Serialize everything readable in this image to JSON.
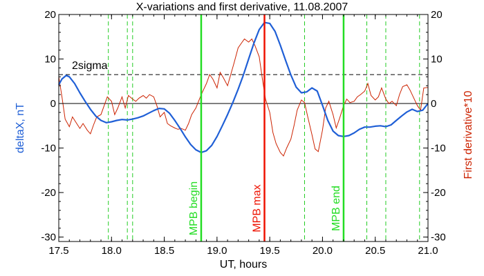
{
  "chart_data": {
    "type": "line",
    "title": "X-variations and first derivative, 11.08.2007",
    "xlabel": "UT, hours",
    "ylabel_left": "deltaX, nT",
    "ylabel_right": "First derivative*10",
    "xlim": [
      17.5,
      21.0
    ],
    "ylim_left": [
      -31,
      20
    ],
    "ylim_right": [
      -31,
      20
    ],
    "x_ticks": [
      17.5,
      18.0,
      18.5,
      19.0,
      19.5,
      20.0,
      20.5,
      21.0
    ],
    "x_tick_labels": [
      "17.5",
      "18.0",
      "18.5",
      "19.0",
      "19.5",
      "20.0",
      "20.5",
      "21.0"
    ],
    "y_ticks": [
      20,
      10,
      0,
      -10,
      -20,
      -30
    ],
    "y_tick_labels": [
      "20",
      "10",
      "0",
      "-10",
      "-20",
      "-30"
    ],
    "colors": {
      "deltaX": "#1f5fd6",
      "derivative": "#cc2200",
      "mpb_line": "#22dd22",
      "max_line": "#ee1100",
      "dashed_green": "#22cc22",
      "sigma": "#000000",
      "left_label": "#1f5fd6",
      "right_label": "#cc2200"
    },
    "sigma": {
      "label": "2sigma",
      "value": 6.5
    },
    "zero_line": 0,
    "vertical_markers": [
      {
        "x": 18.85,
        "label": "MPB begin",
        "kind": "mpb"
      },
      {
        "x": 19.45,
        "label": "MPB max",
        "kind": "max"
      },
      {
        "x": 20.2,
        "label": "MPB end",
        "kind": "mpb"
      }
    ],
    "dashed_markers": [
      17.97,
      18.15,
      18.2,
      19.83,
      20.42,
      20.6,
      20.92
    ],
    "series": [
      {
        "name": "deltaX",
        "axis": "left",
        "x": [
          17.5,
          17.53,
          17.57,
          17.6,
          17.65,
          17.7,
          17.75,
          17.8,
          17.85,
          17.9,
          17.95,
          18.0,
          18.05,
          18.1,
          18.15,
          18.2,
          18.25,
          18.3,
          18.35,
          18.4,
          18.45,
          18.5,
          18.55,
          18.6,
          18.65,
          18.7,
          18.75,
          18.8,
          18.85,
          18.9,
          18.95,
          19.0,
          19.05,
          19.1,
          19.15,
          19.2,
          19.25,
          19.3,
          19.35,
          19.4,
          19.45,
          19.5,
          19.55,
          19.6,
          19.65,
          19.7,
          19.75,
          19.8,
          19.85,
          19.9,
          19.95,
          20.0,
          20.05,
          20.1,
          20.15,
          20.2,
          20.25,
          20.3,
          20.35,
          20.4,
          20.45,
          20.5,
          20.55,
          20.6,
          20.65,
          20.7,
          20.75,
          20.8,
          20.85,
          20.9,
          20.95,
          21.0
        ],
        "y": [
          4.2,
          5.5,
          6.3,
          6.0,
          4.5,
          2.4,
          0.5,
          -1.3,
          -2.8,
          -3.8,
          -4.3,
          -4.1,
          -3.8,
          -3.6,
          -3.7,
          -3.5,
          -3.2,
          -2.8,
          -2.2,
          -1.6,
          -1.1,
          -1.2,
          -2.2,
          -3.8,
          -5.6,
          -7.5,
          -9.2,
          -10.4,
          -11.0,
          -10.6,
          -9.4,
          -7.4,
          -5.0,
          -2.5,
          0.2,
          3.2,
          6.4,
          10.0,
          13.6,
          16.6,
          18.2,
          18.0,
          16.2,
          13.1,
          9.7,
          6.4,
          3.7,
          2.4,
          2.6,
          3.5,
          2.8,
          -0.4,
          -3.8,
          -6.2,
          -7.2,
          -7.4,
          -7.2,
          -6.6,
          -5.8,
          -5.3,
          -5.3,
          -5.1,
          -5.0,
          -5.2,
          -4.8,
          -3.8,
          -2.8,
          -1.9,
          -1.3,
          -1.8,
          -1.5,
          0.0
        ]
      },
      {
        "name": "derivative",
        "axis": "right",
        "x": [
          17.5,
          17.53,
          17.56,
          17.6,
          17.63,
          17.67,
          17.7,
          17.73,
          17.77,
          17.8,
          17.83,
          17.86,
          17.9,
          17.93,
          17.96,
          18.0,
          18.03,
          18.06,
          18.1,
          18.13,
          18.16,
          18.2,
          18.23,
          18.26,
          18.3,
          18.33,
          18.36,
          18.4,
          18.43,
          18.46,
          18.5,
          18.53,
          18.56,
          18.6,
          18.63,
          18.66,
          18.7,
          18.73,
          18.76,
          18.8,
          18.83,
          18.86,
          18.9,
          18.93,
          18.96,
          19.0,
          19.03,
          19.06,
          19.1,
          19.13,
          19.16,
          19.2,
          19.23,
          19.26,
          19.3,
          19.33,
          19.36,
          19.4,
          19.43,
          19.46,
          19.5,
          19.53,
          19.56,
          19.6,
          19.63,
          19.66,
          19.7,
          19.73,
          19.76,
          19.8,
          19.83,
          19.86,
          19.9,
          19.93,
          19.96,
          20.0,
          20.03,
          20.06,
          20.1,
          20.13,
          20.16,
          20.2,
          20.23,
          20.26,
          20.3,
          20.33,
          20.36,
          20.4,
          20.43,
          20.46,
          20.5,
          20.53,
          20.56,
          20.6,
          20.63,
          20.66,
          20.7,
          20.73,
          20.76,
          20.8,
          20.83,
          20.86,
          20.9,
          20.93,
          20.96,
          21.0
        ],
        "y": [
          6.0,
          1.5,
          -3.5,
          -5.2,
          -3.0,
          -4.5,
          -5.6,
          -4.5,
          -6.0,
          -6.8,
          -4.8,
          -3.0,
          -2.5,
          -0.5,
          1.5,
          0.5,
          -2.5,
          -1.0,
          1.5,
          -1.0,
          1.8,
          1.0,
          0.5,
          1.2,
          1.8,
          1.2,
          2.0,
          1.5,
          -0.5,
          -3.0,
          -2.0,
          -4.5,
          -5.0,
          -5.5,
          -5.8,
          -5.6,
          -6.0,
          -4.5,
          -2.5,
          -1.0,
          0.8,
          2.5,
          4.5,
          6.5,
          5.5,
          3.5,
          7.0,
          5.8,
          4.0,
          6.5,
          9.0,
          12.5,
          13.5,
          14.5,
          13.8,
          14.5,
          13.0,
          10.5,
          5.5,
          1.0,
          -2.0,
          -6.5,
          -9.0,
          -11.0,
          -11.8,
          -10.0,
          -8.0,
          -5.0,
          -1.5,
          0.8,
          0.2,
          -3.0,
          -7.0,
          -10.2,
          -10.8,
          -6.0,
          -1.0,
          0.5,
          -2.5,
          -5.5,
          -3.5,
          -0.5,
          1.0,
          0.2,
          0.5,
          1.5,
          2.0,
          2.8,
          4.5,
          1.8,
          0.8,
          1.5,
          3.5,
          1.0,
          0.0,
          0.5,
          -0.5,
          2.0,
          3.8,
          4.2,
          3.0,
          1.5,
          -0.5,
          -1.5,
          3.5,
          3.6
        ]
      }
    ]
  }
}
